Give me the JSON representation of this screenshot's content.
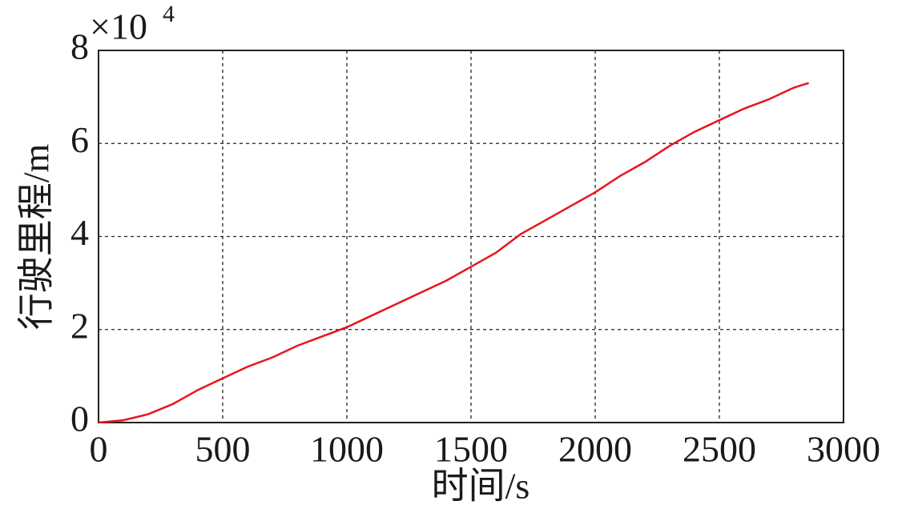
{
  "chart_data": {
    "type": "line",
    "x_label": "时间/s",
    "y_label": "行驶里程/m",
    "y_multiplier": "×10",
    "y_multiplier_exponent": "4",
    "x": [
      0,
      100,
      200,
      300,
      400,
      500,
      600,
      700,
      800,
      900,
      1000,
      1100,
      1200,
      1300,
      1400,
      1500,
      1600,
      1700,
      1800,
      1900,
      2000,
      2100,
      2200,
      2300,
      2400,
      2500,
      2600,
      2700,
      2800,
      2860
    ],
    "series": [
      {
        "color": "#e8141c",
        "values": [
          0,
          0.05,
          0.18,
          0.4,
          0.7,
          0.95,
          1.2,
          1.4,
          1.65,
          1.85,
          2.05,
          2.3,
          2.55,
          2.8,
          3.05,
          3.35,
          3.65,
          4.05,
          4.35,
          4.65,
          4.95,
          5.3,
          5.6,
          5.95,
          6.25,
          6.5,
          6.75,
          6.95,
          7.2,
          7.3
        ]
      }
    ],
    "xlim": [
      0,
      3000
    ],
    "ylim": [
      0,
      8
    ],
    "xticks": [
      0,
      500,
      1000,
      1500,
      2000,
      2500,
      3000
    ],
    "yticks": [
      0,
      2,
      4,
      6,
      8
    ],
    "grid": true
  }
}
